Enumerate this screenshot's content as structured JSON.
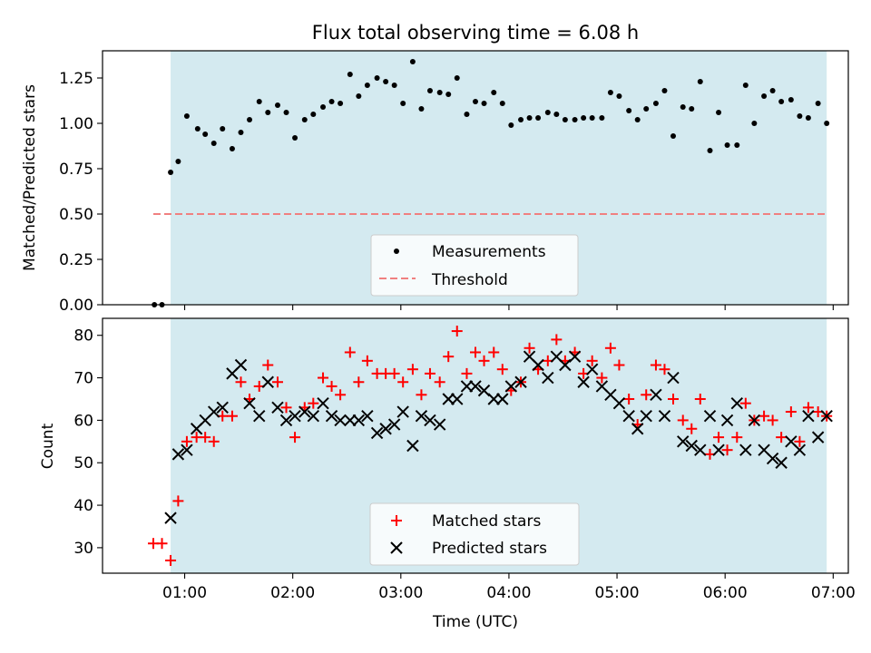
{
  "figure_title": "Flux total observing time = 6.08 h",
  "colors": {
    "observing_span": "#d4eaf0",
    "measurement": "#000000",
    "threshold": "#f08080",
    "matched": "#ff0000",
    "predicted": "#000000",
    "axes": "#000000"
  },
  "chart_data": [
    {
      "type": "scatter",
      "title": "Flux total observing time = 6.08 h",
      "xlabel": "",
      "ylabel": "Matched/Predicted stars",
      "x_unit": "hours (UTC)",
      "xlim": [
        0.24,
        7.14
      ],
      "ylim": [
        0,
        1.4
      ],
      "xticks": [
        1,
        2,
        3,
        4,
        5,
        6,
        7
      ],
      "xtick_labels": [
        "01:00",
        "02:00",
        "03:00",
        "04:00",
        "05:00",
        "06:00",
        "07:00"
      ],
      "xtick_labels_visible": false,
      "yticks": [
        0,
        0.25,
        0.5,
        0.75,
        1.0,
        1.25
      ],
      "ytick_labels": [
        "0.00",
        "0.25",
        "0.50",
        "0.75",
        "1.00",
        "1.25"
      ],
      "observing_span": [
        0.87,
        6.94
      ],
      "legend": {
        "placement": "lower center",
        "entries": [
          "Measurements",
          "Threshold"
        ]
      },
      "threshold": {
        "name": "Threshold",
        "value": 0.5,
        "x_range": [
          0.71,
          6.94
        ],
        "style": "dashed"
      },
      "series": [
        {
          "name": "Measurements",
          "marker": "dot",
          "x": [
            0.72,
            0.79,
            0.87,
            0.94,
            1.02,
            1.12,
            1.19,
            1.27,
            1.35,
            1.44,
            1.52,
            1.6,
            1.69,
            1.77,
            1.86,
            1.94,
            2.02,
            2.11,
            2.19,
            2.28,
            2.36,
            2.44,
            2.53,
            2.61,
            2.69,
            2.78,
            2.86,
            2.94,
            3.02,
            3.11,
            3.19,
            3.27,
            3.36,
            3.44,
            3.52,
            3.61,
            3.69,
            3.77,
            3.86,
            3.94,
            4.02,
            4.11,
            4.19,
            4.27,
            4.36,
            4.44,
            4.52,
            4.61,
            4.69,
            4.77,
            4.86,
            4.94,
            5.02,
            5.11,
            5.19,
            5.27,
            5.36,
            5.44,
            5.52,
            5.61,
            5.69,
            5.77,
            5.86,
            5.94,
            6.02,
            6.11,
            6.19,
            6.27,
            6.36,
            6.44,
            6.52,
            6.61,
            6.69,
            6.77,
            6.86,
            6.94
          ],
          "y": [
            0.0,
            0.0,
            0.73,
            0.79,
            1.04,
            0.97,
            0.94,
            0.89,
            0.97,
            0.86,
            0.95,
            1.02,
            1.12,
            1.06,
            1.1,
            1.06,
            0.92,
            1.02,
            1.05,
            1.09,
            1.12,
            1.11,
            1.27,
            1.15,
            1.21,
            1.25,
            1.23,
            1.21,
            1.11,
            1.34,
            1.08,
            1.18,
            1.17,
            1.16,
            1.25,
            1.05,
            1.12,
            1.11,
            1.17,
            1.11,
            0.99,
            1.02,
            1.03,
            1.03,
            1.06,
            1.05,
            1.02,
            1.02,
            1.03,
            1.03,
            1.03,
            1.17,
            1.15,
            1.07,
            1.02,
            1.08,
            1.11,
            1.18,
            0.93,
            1.09,
            1.08,
            1.23,
            0.85,
            1.06,
            0.88,
            0.88,
            1.21,
            1.0,
            1.15,
            1.18,
            1.12,
            1.13,
            1.04,
            1.03,
            1.11,
            1.0
          ]
        }
      ]
    },
    {
      "type": "scatter",
      "title": "",
      "xlabel": "Time (UTC)",
      "ylabel": "Count",
      "x_unit": "hours (UTC)",
      "xlim": [
        0.24,
        7.14
      ],
      "ylim": [
        24,
        84
      ],
      "xticks": [
        1,
        2,
        3,
        4,
        5,
        6,
        7
      ],
      "xtick_labels": [
        "01:00",
        "02:00",
        "03:00",
        "04:00",
        "05:00",
        "06:00",
        "07:00"
      ],
      "xtick_labels_visible": true,
      "yticks": [
        30,
        40,
        50,
        60,
        70,
        80
      ],
      "ytick_labels": [
        "30",
        "40",
        "50",
        "60",
        "70",
        "80"
      ],
      "observing_span": [
        0.87,
        6.94
      ],
      "legend": {
        "placement": "lower center",
        "entries": [
          "Matched stars",
          "Predicted stars"
        ]
      },
      "series": [
        {
          "name": "Matched stars",
          "marker": "plus",
          "x": [
            0.71,
            0.79,
            0.87,
            0.94,
            1.02,
            1.11,
            1.19,
            1.27,
            1.35,
            1.44,
            1.52,
            1.6,
            1.69,
            1.77,
            1.86,
            1.94,
            2.02,
            2.11,
            2.19,
            2.28,
            2.36,
            2.44,
            2.53,
            2.61,
            2.69,
            2.78,
            2.86,
            2.94,
            3.02,
            3.11,
            3.19,
            3.27,
            3.36,
            3.44,
            3.52,
            3.61,
            3.69,
            3.77,
            3.86,
            3.94,
            4.02,
            4.11,
            4.19,
            4.27,
            4.36,
            4.44,
            4.52,
            4.61,
            4.69,
            4.77,
            4.86,
            4.94,
            5.02,
            5.11,
            5.19,
            5.27,
            5.36,
            5.44,
            5.52,
            5.61,
            5.69,
            5.77,
            5.86,
            5.94,
            6.02,
            6.11,
            6.19,
            6.27,
            6.36,
            6.44,
            6.52,
            6.61,
            6.69,
            6.77,
            6.86,
            6.94
          ],
          "y": [
            31,
            31,
            27,
            41,
            55,
            56,
            56,
            55,
            61,
            61,
            69,
            65,
            68,
            73,
            69,
            63,
            56,
            63,
            64,
            70,
            68,
            66,
            76,
            69,
            74,
            71,
            71,
            71,
            69,
            72,
            66,
            71,
            69,
            75,
            81,
            71,
            76,
            74,
            76,
            72,
            67,
            69,
            77,
            72,
            74,
            79,
            74,
            76,
            71,
            74,
            70,
            77,
            73,
            65,
            59,
            66,
            73,
            72,
            65,
            60,
            58,
            65,
            52,
            56,
            53,
            56,
            64,
            60,
            61,
            60,
            56,
            62,
            55,
            63,
            62,
            61
          ]
        },
        {
          "name": "Predicted stars",
          "marker": "cross",
          "x": [
            0.87,
            0.94,
            1.02,
            1.11,
            1.19,
            1.27,
            1.35,
            1.44,
            1.52,
            1.6,
            1.69,
            1.77,
            1.86,
            1.94,
            2.02,
            2.11,
            2.19,
            2.28,
            2.36,
            2.44,
            2.53,
            2.61,
            2.69,
            2.78,
            2.86,
            2.94,
            3.02,
            3.11,
            3.19,
            3.27,
            3.36,
            3.44,
            3.52,
            3.61,
            3.69,
            3.77,
            3.86,
            3.94,
            4.02,
            4.11,
            4.19,
            4.27,
            4.36,
            4.44,
            4.52,
            4.61,
            4.69,
            4.77,
            4.86,
            4.94,
            5.02,
            5.11,
            5.19,
            5.27,
            5.36,
            5.44,
            5.52,
            5.61,
            5.69,
            5.77,
            5.86,
            5.94,
            6.02,
            6.11,
            6.19,
            6.27,
            6.36,
            6.44,
            6.52,
            6.61,
            6.69,
            6.77,
            6.86,
            6.94
          ],
          "y": [
            37,
            52,
            53,
            58,
            60,
            62,
            63,
            71,
            73,
            64,
            61,
            69,
            63,
            60,
            61,
            62,
            61,
            64,
            61,
            60,
            60,
            60,
            61,
            57,
            58,
            59,
            62,
            54,
            61,
            60,
            59,
            65,
            65,
            68,
            68,
            67,
            65,
            65,
            68,
            69,
            75,
            73,
            70,
            75,
            73,
            75,
            69,
            72,
            68,
            66,
            64,
            61,
            58,
            61,
            66,
            61,
            70,
            55,
            54,
            53,
            61,
            53,
            60,
            64,
            53,
            60,
            53,
            51,
            50,
            55,
            53,
            61,
            56,
            61
          ]
        }
      ]
    }
  ]
}
